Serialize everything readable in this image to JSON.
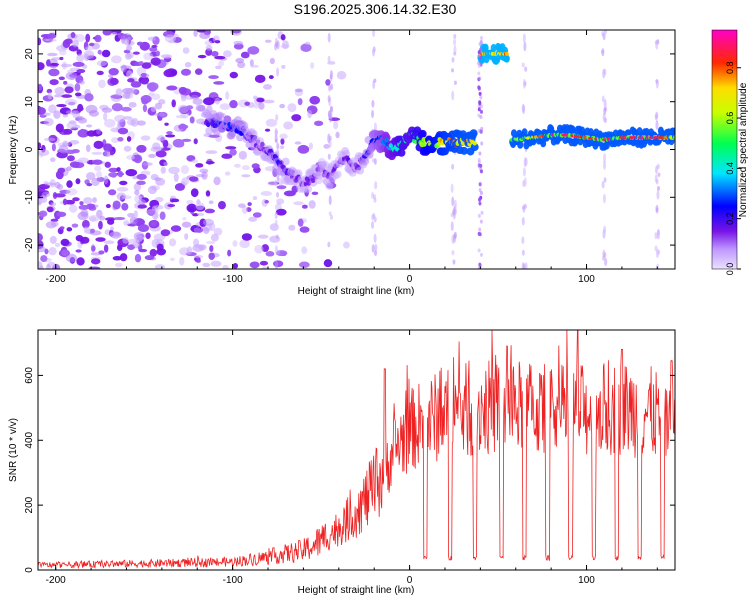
{
  "title": "S196.2025.306.14.32.E30",
  "colors": {
    "line": "#ee2222",
    "frame": "#000000",
    "colorbar": [
      "#ffffff",
      "#8a2be2",
      "#0000ff",
      "#00ffff",
      "#00ff00",
      "#ffff00",
      "#ff0000",
      "#ff00ff"
    ]
  },
  "chart_data": [
    {
      "type": "heatmap",
      "title": "",
      "xlabel": "Height of straight line (km)",
      "ylabel": "Frequency (Hz)",
      "xlim": [
        -210,
        150
      ],
      "ylim": [
        -25,
        25
      ],
      "x_ticks": [
        -200,
        -100,
        0,
        100
      ],
      "x_tick_labels": [
        "-200",
        "-100",
        "0",
        "100"
      ],
      "y_ticks": [
        -20,
        -10,
        0,
        10,
        20
      ],
      "y_tick_labels": [
        "-20",
        "-10",
        "0",
        "10",
        "20"
      ],
      "colorbar": {
        "label": "Normalized spectral amplitude",
        "range": [
          0,
          0.95
        ],
        "ticks": [
          0.0,
          0.2,
          0.4,
          0.6,
          0.8
        ],
        "tick_labels": [
          "0.0",
          "0.2",
          "0.4",
          "0.6",
          "0.8"
        ]
      },
      "ridge": {
        "x": [
          -115,
          -105,
          -95,
          -85,
          -75,
          -68,
          -60,
          -55,
          -50,
          -45,
          -40,
          -35,
          -30,
          -25,
          -20,
          -15,
          -10,
          -5,
          0,
          5,
          10,
          20,
          30,
          37
        ],
        "y": [
          6,
          5,
          4,
          1,
          -2,
          -5,
          -7,
          -6,
          -4,
          -6,
          -3,
          -2,
          -4,
          -1,
          2,
          2,
          0,
          1,
          3,
          2,
          1,
          1.5,
          1.5,
          1.5
        ],
        "amp": [
          0.2,
          0.3,
          0.25,
          0.15,
          0.25,
          0.2,
          0.15,
          0.2,
          0.12,
          0.18,
          0.15,
          0.2,
          0.15,
          0.25,
          0.3,
          0.35,
          0.45,
          0.55,
          0.5,
          0.6,
          0.7,
          0.8,
          0.85,
          0.85
        ]
      },
      "gap_x": [
        37,
        40
      ],
      "high_segment": {
        "x": [
          40,
          55
        ],
        "y": 20,
        "amp": 0.75
      },
      "gap2_x": [
        55,
        58
      ],
      "tail_segment": {
        "x": [
          58,
          70,
          80,
          90,
          100,
          110,
          120,
          130,
          140,
          150
        ],
        "y": [
          2,
          2.5,
          3,
          3,
          2.5,
          2,
          2.5,
          2.5,
          2.5,
          2.5
        ],
        "amp": [
          0.5,
          0.7,
          0.9,
          0.9,
          0.8,
          0.9,
          0.85,
          0.9,
          0.9,
          0.7
        ]
      },
      "noise_region": {
        "x": [
          -210,
          -35
        ],
        "y": [
          -25,
          25
        ],
        "description_note": "scattered low amplitude"
      }
    },
    {
      "type": "line",
      "title": "",
      "xlabel": "Height of straight line (km)",
      "ylabel": "SNR (10 * v/v)",
      "xlim": [
        -210,
        150
      ],
      "ylim": [
        0,
        740
      ],
      "x_ticks": [
        -200,
        -100,
        0,
        100
      ],
      "x_tick_labels": [
        "-200",
        "-100",
        "0",
        "100"
      ],
      "y_ticks": [
        0,
        200,
        400,
        600
      ],
      "y_tick_labels": [
        "0",
        "200",
        "400",
        "600"
      ],
      "series": [
        {
          "name": "SNR",
          "x": [
            -210,
            -150,
            -100,
            -80,
            -60,
            -50,
            -40,
            -30,
            -20,
            -15,
            -12,
            -10,
            -5,
            0,
            10,
            20,
            30,
            40,
            60,
            80,
            100,
            120,
            140,
            150
          ],
          "y": [
            15,
            20,
            25,
            40,
            60,
            90,
            130,
            180,
            250,
            300,
            330,
            360,
            400,
            430,
            460,
            480,
            490,
            500,
            500,
            490,
            490,
            500,
            480,
            430
          ],
          "peaks": [
            {
              "x": -14,
              "y": 620
            },
            {
              "x": 95,
              "y": 740
            },
            {
              "x": 55,
              "y": 690
            },
            {
              "x": 120,
              "y": 680
            },
            {
              "x": 148,
              "y": 645
            }
          ],
          "dips_x": [
            9,
            23,
            37,
            52,
            65,
            78,
            91,
            104,
            117,
            130,
            143
          ],
          "dip_level": 30
        }
      ]
    }
  ]
}
